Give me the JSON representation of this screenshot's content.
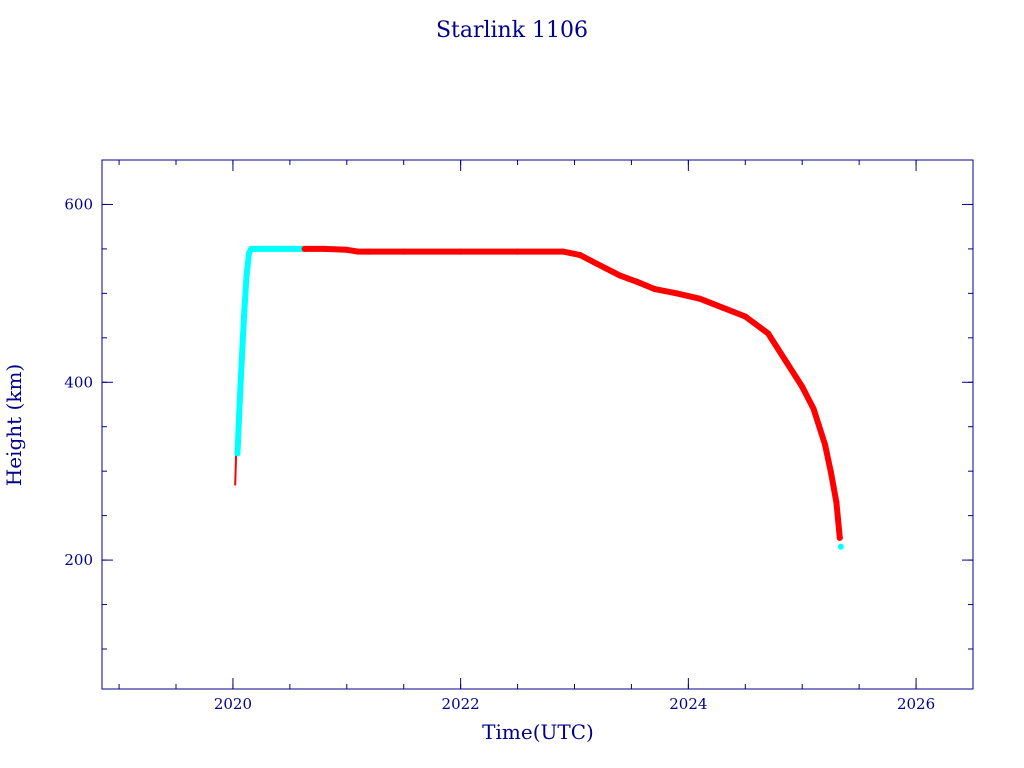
{
  "chart_data": {
    "type": "scatter",
    "title": "Starlink 1106",
    "xlabel": "Time(UTC)",
    "ylabel": "Height (km)",
    "xlim": [
      2018.85,
      2026.5
    ],
    "ylim": [
      55,
      650
    ],
    "x_ticks": [
      2020,
      2022,
      2024,
      2026
    ],
    "x_tick_labels": [
      "2020",
      "2022",
      "2024",
      "2026"
    ],
    "x_minor_step": 0.5,
    "y_ticks": [
      200,
      400,
      600
    ],
    "y_tick_labels": [
      "200",
      "400",
      "600"
    ],
    "y_minor_step": 50,
    "grid": false,
    "colors": {
      "axis": "#00008b",
      "perigee": "#00ffff",
      "apogee": "#ff0000"
    },
    "series": [
      {
        "color": "#ff0000",
        "x": [
          2020.02,
          2020.03
        ],
        "y": [
          285,
          330
        ]
      },
      {
        "color": "#00ffff",
        "x": [
          2020.04,
          2020.06,
          2020.08,
          2020.1,
          2020.12,
          2020.14,
          2020.16,
          2020.2,
          2020.3,
          2020.4,
          2020.5,
          2020.62
        ],
        "y": [
          320,
          380,
          430,
          480,
          520,
          545,
          550,
          550,
          550,
          550,
          550,
          550
        ]
      },
      {
        "color": "#ff0000",
        "x": [
          2020.63,
          2020.8,
          2021.0,
          2021.1,
          2021.2,
          2021.5,
          2022.0,
          2022.5,
          2022.9,
          2023.05,
          2023.2,
          2023.4,
          2023.55,
          2023.7,
          2023.9,
          2024.1,
          2024.3,
          2024.5,
          2024.7,
          2024.85,
          2025.0,
          2025.1,
          2025.2,
          2025.25,
          2025.3,
          2025.33
        ],
        "y": [
          550,
          550,
          549,
          547,
          547,
          547,
          547,
          547,
          547,
          543,
          533,
          520,
          513,
          505,
          500,
          494,
          484,
          474,
          455,
          425,
          395,
          370,
          330,
          300,
          265,
          225
        ]
      },
      {
        "color": "#00ffff",
        "x": [
          2025.34
        ],
        "y": [
          215
        ]
      }
    ]
  }
}
